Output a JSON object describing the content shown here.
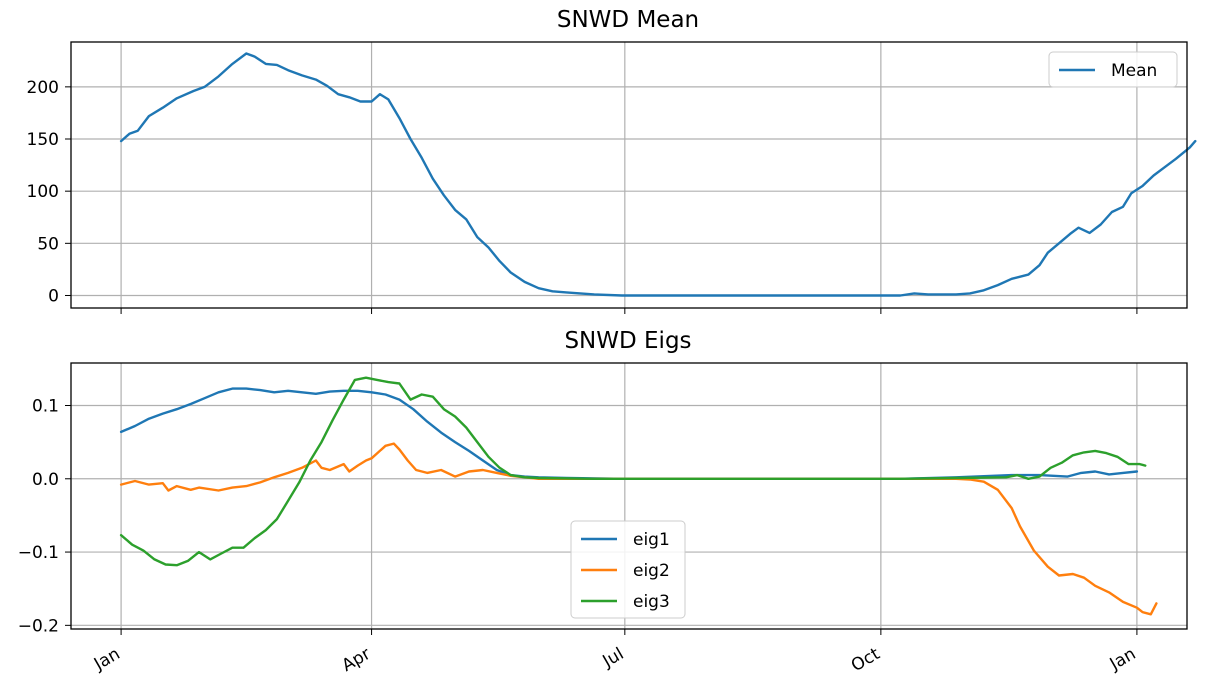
{
  "chart_data": [
    {
      "type": "line",
      "title": "SNWD Mean",
      "xlabel": "",
      "ylabel": "",
      "x_tick_labels": [
        "",
        "",
        "",
        "",
        ""
      ],
      "x_tick_days": [
        0,
        90,
        181,
        273,
        365
      ],
      "xlim": [
        -18,
        383
      ],
      "ylim": [
        -12,
        243
      ],
      "y_ticks": [
        0,
        50,
        100,
        150,
        200
      ],
      "y_tick_labels": [
        "0",
        "50",
        "100",
        "150",
        "200"
      ],
      "grid": true,
      "legend": {
        "placement": "top-right",
        "entries": [
          "Mean"
        ]
      },
      "series": [
        {
          "name": "Mean",
          "color": "#1f77b4",
          "points": [
            [
              0,
              148
            ],
            [
              3,
              155
            ],
            [
              6,
              158
            ],
            [
              10,
              172
            ],
            [
              15,
              180
            ],
            [
              20,
              189
            ],
            [
              26,
              196
            ],
            [
              30,
              200
            ],
            [
              35,
              210
            ],
            [
              40,
              222
            ],
            [
              45,
              232
            ],
            [
              48,
              229
            ],
            [
              52,
              222
            ],
            [
              56,
              221
            ],
            [
              60,
              216
            ],
            [
              65,
              211
            ],
            [
              70,
              207
            ],
            [
              74,
              201
            ],
            [
              78,
              193
            ],
            [
              82,
              190
            ],
            [
              86,
              186
            ],
            [
              90,
              186
            ],
            [
              93,
              193
            ],
            [
              96,
              188
            ],
            [
              100,
              170
            ],
            [
              104,
              150
            ],
            [
              108,
              132
            ],
            [
              112,
              112
            ],
            [
              116,
              96
            ],
            [
              120,
              82
            ],
            [
              124,
              73
            ],
            [
              128,
              56
            ],
            [
              132,
              46
            ],
            [
              136,
              33
            ],
            [
              140,
              22
            ],
            [
              145,
              13
            ],
            [
              150,
              7
            ],
            [
              155,
              4
            ],
            [
              160,
              3
            ],
            [
              165,
              2
            ],
            [
              170,
              1
            ],
            [
              180,
              0
            ],
            [
              200,
              0
            ],
            [
              250,
              0
            ],
            [
              280,
              0
            ],
            [
              285,
              2
            ],
            [
              290,
              1
            ],
            [
              300,
              1
            ],
            [
              305,
              2
            ],
            [
              310,
              5
            ],
            [
              315,
              10
            ],
            [
              320,
              16
            ],
            [
              326,
              20
            ],
            [
              330,
              29
            ],
            [
              333,
              41
            ],
            [
              337,
              50
            ],
            [
              341,
              59
            ],
            [
              344,
              65
            ],
            [
              348,
              60
            ],
            [
              352,
              68
            ],
            [
              356,
              80
            ],
            [
              360,
              85
            ],
            [
              363,
              98
            ],
            [
              367,
              105
            ],
            [
              371,
              115
            ],
            [
              375,
              123
            ],
            [
              379,
              131
            ],
            [
              384,
              142
            ],
            [
              386,
              148
            ]
          ]
        }
      ]
    },
    {
      "type": "line",
      "title": "SNWD Eigs",
      "xlabel": "",
      "ylabel": "",
      "x_tick_labels": [
        "Jan",
        "Apr",
        "Jul",
        "Oct",
        "Jan"
      ],
      "x_tick_days": [
        0,
        90,
        181,
        273,
        365
      ],
      "xlim": [
        -18,
        383
      ],
      "ylim": [
        -0.205,
        0.158
      ],
      "y_ticks": [
        -0.2,
        -0.1,
        0.0,
        0.1
      ],
      "y_tick_labels": [
        "−0.2",
        "−0.1",
        "0.0",
        "0.1"
      ],
      "grid": true,
      "legend": {
        "placement": "lower-center",
        "entries": [
          "eig1",
          "eig2",
          "eig3"
        ]
      },
      "series": [
        {
          "name": "eig1",
          "color": "#1f77b4",
          "points": [
            [
              0,
              0.064
            ],
            [
              5,
              0.072
            ],
            [
              10,
              0.082
            ],
            [
              15,
              0.089
            ],
            [
              20,
              0.095
            ],
            [
              25,
              0.102
            ],
            [
              30,
              0.11
            ],
            [
              35,
              0.118
            ],
            [
              40,
              0.123
            ],
            [
              45,
              0.123
            ],
            [
              50,
              0.121
            ],
            [
              55,
              0.118
            ],
            [
              60,
              0.12
            ],
            [
              65,
              0.118
            ],
            [
              70,
              0.116
            ],
            [
              75,
              0.119
            ],
            [
              80,
              0.12
            ],
            [
              85,
              0.12
            ],
            [
              90,
              0.118
            ],
            [
              95,
              0.115
            ],
            [
              100,
              0.108
            ],
            [
              105,
              0.095
            ],
            [
              110,
              0.078
            ],
            [
              115,
              0.063
            ],
            [
              120,
              0.05
            ],
            [
              125,
              0.038
            ],
            [
              130,
              0.025
            ],
            [
              135,
              0.012
            ],
            [
              140,
              0.005
            ],
            [
              145,
              0.003
            ],
            [
              150,
              0.002
            ],
            [
              160,
              0.001
            ],
            [
              180,
              0.0
            ],
            [
              250,
              0.0
            ],
            [
              280,
              0.0
            ],
            [
              300,
              0.002
            ],
            [
              320,
              0.005
            ],
            [
              330,
              0.005
            ],
            [
              340,
              0.003
            ],
            [
              345,
              0.008
            ],
            [
              350,
              0.01
            ],
            [
              355,
              0.006
            ],
            [
              360,
              0.008
            ],
            [
              365,
              0.01
            ]
          ]
        },
        {
          "name": "eig2",
          "color": "#ff7f0e",
          "points": [
            [
              0,
              -0.008
            ],
            [
              5,
              -0.003
            ],
            [
              10,
              -0.008
            ],
            [
              15,
              -0.006
            ],
            [
              17,
              -0.016
            ],
            [
              20,
              -0.01
            ],
            [
              25,
              -0.015
            ],
            [
              28,
              -0.012
            ],
            [
              35,
              -0.016
            ],
            [
              40,
              -0.012
            ],
            [
              45,
              -0.01
            ],
            [
              50,
              -0.005
            ],
            [
              55,
              0.002
            ],
            [
              60,
              0.008
            ],
            [
              65,
              0.015
            ],
            [
              70,
              0.025
            ],
            [
              72,
              0.015
            ],
            [
              75,
              0.012
            ],
            [
              80,
              0.02
            ],
            [
              82,
              0.01
            ],
            [
              85,
              0.018
            ],
            [
              88,
              0.025
            ],
            [
              90,
              0.028
            ],
            [
              95,
              0.045
            ],
            [
              98,
              0.048
            ],
            [
              100,
              0.04
            ],
            [
              103,
              0.025
            ],
            [
              106,
              0.012
            ],
            [
              110,
              0.008
            ],
            [
              115,
              0.012
            ],
            [
              120,
              0.003
            ],
            [
              125,
              0.01
            ],
            [
              130,
              0.012
            ],
            [
              135,
              0.008
            ],
            [
              140,
              0.004
            ],
            [
              145,
              0.002
            ],
            [
              150,
              0.0
            ],
            [
              200,
              0.0
            ],
            [
              280,
              0.0
            ],
            [
              300,
              0.0
            ],
            [
              305,
              -0.001
            ],
            [
              310,
              -0.004
            ],
            [
              315,
              -0.015
            ],
            [
              320,
              -0.04
            ],
            [
              323,
              -0.065
            ],
            [
              328,
              -0.098
            ],
            [
              333,
              -0.12
            ],
            [
              337,
              -0.132
            ],
            [
              342,
              -0.13
            ],
            [
              346,
              -0.135
            ],
            [
              350,
              -0.146
            ],
            [
              355,
              -0.155
            ],
            [
              360,
              -0.168
            ],
            [
              365,
              -0.176
            ],
            [
              367,
              -0.182
            ],
            [
              370,
              -0.185
            ],
            [
              372,
              -0.17
            ]
          ]
        },
        {
          "name": "eig3",
          "color": "#2ca02c",
          "points": [
            [
              0,
              -0.077
            ],
            [
              4,
              -0.09
            ],
            [
              8,
              -0.098
            ],
            [
              12,
              -0.11
            ],
            [
              16,
              -0.117
            ],
            [
              20,
              -0.118
            ],
            [
              24,
              -0.112
            ],
            [
              28,
              -0.1
            ],
            [
              32,
              -0.11
            ],
            [
              36,
              -0.102
            ],
            [
              40,
              -0.094
            ],
            [
              44,
              -0.094
            ],
            [
              48,
              -0.081
            ],
            [
              52,
              -0.07
            ],
            [
              56,
              -0.055
            ],
            [
              60,
              -0.03
            ],
            [
              64,
              -0.005
            ],
            [
              68,
              0.025
            ],
            [
              72,
              0.05
            ],
            [
              76,
              0.08
            ],
            [
              80,
              0.108
            ],
            [
              84,
              0.135
            ],
            [
              88,
              0.138
            ],
            [
              92,
              0.135
            ],
            [
              96,
              0.132
            ],
            [
              100,
              0.13
            ],
            [
              104,
              0.108
            ],
            [
              108,
              0.115
            ],
            [
              112,
              0.112
            ],
            [
              116,
              0.095
            ],
            [
              120,
              0.085
            ],
            [
              124,
              0.07
            ],
            [
              128,
              0.05
            ],
            [
              132,
              0.03
            ],
            [
              136,
              0.015
            ],
            [
              140,
              0.005
            ],
            [
              145,
              0.002
            ],
            [
              150,
              0.001
            ],
            [
              170,
              0.0
            ],
            [
              250,
              0.0
            ],
            [
              280,
              0.0
            ],
            [
              300,
              0.001
            ],
            [
              318,
              0.002
            ],
            [
              322,
              0.005
            ],
            [
              326,
              0.0
            ],
            [
              330,
              0.003
            ],
            [
              334,
              0.015
            ],
            [
              338,
              0.022
            ],
            [
              342,
              0.032
            ],
            [
              346,
              0.036
            ],
            [
              350,
              0.038
            ],
            [
              354,
              0.035
            ],
            [
              358,
              0.03
            ],
            [
              362,
              0.02
            ],
            [
              366,
              0.02
            ],
            [
              368,
              0.018
            ]
          ]
        }
      ]
    }
  ]
}
